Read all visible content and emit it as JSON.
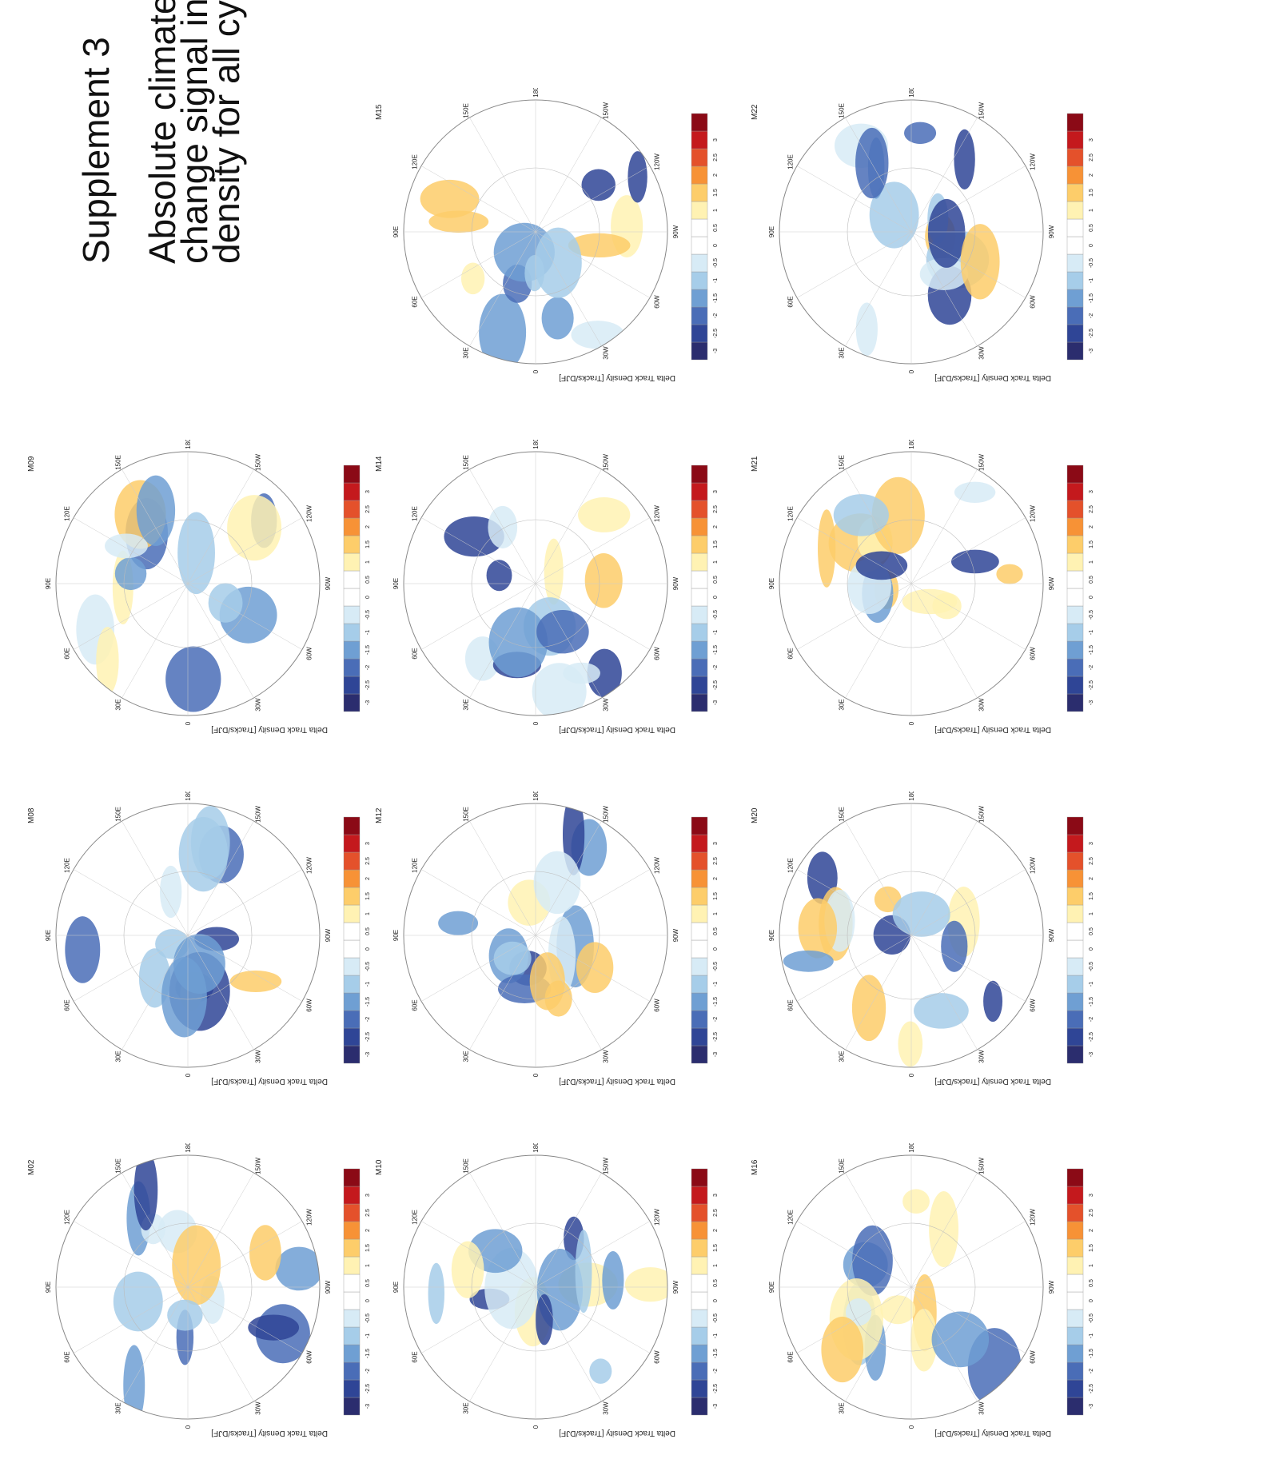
{
  "title": {
    "supplement": "Supplement 3",
    "line1": "Absolute climate",
    "line2": "change signal in tr",
    "line3": "density for all cyclo"
  },
  "panel_common": {
    "ylabel": "Delta Track Density [Tracks/DJF]",
    "longitude_labels": [
      "90E",
      "120E",
      "150E",
      "180",
      "150W",
      "120W",
      "90W",
      "60W",
      "30W",
      "0",
      "30E",
      "60E"
    ],
    "colorbar_ticks": [
      "-3",
      "-2.5",
      "-2",
      "-1.5",
      "-1",
      "-0.5",
      "0",
      "0.5",
      "1",
      "1.5",
      "2",
      "2.5",
      "3"
    ],
    "colorbar_colors": [
      "#2b2d6e",
      "#2f4596",
      "#4a6db7",
      "#6f9fd3",
      "#a6cde9",
      "#d7ebf6",
      "#ffffff",
      "#ffffff",
      "#fff2b3",
      "#fdcd6a",
      "#f79236",
      "#e4512b",
      "#c4191d",
      "#8b0a16"
    ]
  },
  "panels": [
    {
      "id": "M02",
      "label": "M02"
    },
    {
      "id": "M08",
      "label": "M08"
    },
    {
      "id": "M09",
      "label": "M09"
    },
    {
      "id": "M10",
      "label": "M10"
    },
    {
      "id": "M12",
      "label": "M12"
    },
    {
      "id": "M14",
      "label": "M14"
    },
    {
      "id": "M15",
      "label": "M15"
    },
    {
      "id": "M16",
      "label": "M16"
    },
    {
      "id": "M20",
      "label": "M20"
    },
    {
      "id": "M21",
      "label": "M21"
    },
    {
      "id": "M22",
      "label": "M22"
    }
  ]
}
